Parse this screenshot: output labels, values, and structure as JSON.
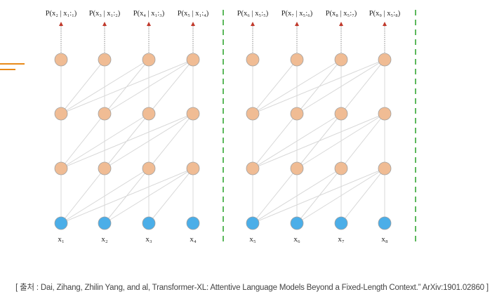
{
  "diagram": {
    "segments": [
      {
        "prob_labels": [
          "P(x₂ | x₁:₁)",
          "P(x₃ | x₁:₂)",
          "P(x₄ | x₁:₃)",
          "P(x₅ | x₁:₄)"
        ],
        "token_labels": [
          "x₁",
          "x₂",
          "x₃",
          "x₄"
        ]
      },
      {
        "prob_labels": [
          "P(x₆ | x₅:₅)",
          "P(x₇ | x₅:₆)",
          "P(x₈ | x₅:₇)",
          "P(x₉ | x₅:₈)"
        ],
        "token_labels": [
          "x₅",
          "x₆",
          "x₇",
          "x₈"
        ]
      }
    ],
    "colors": {
      "input_node": "#4baee8",
      "hidden_node": "#f0bc94",
      "node_stroke": "#a0a0a0",
      "edge": "#d8d8d8",
      "arrow": "#c0392b",
      "segment_separator": "#5cb85c",
      "accent_marks": "#e88a1a"
    }
  },
  "caption": "[ 출처 : Dai, Zihang, Zhilin Yang, and al, Transformer-XL: Attentive Language Models Beyond a Fixed-Length Context.” ArXiv:1901.02860 ]"
}
